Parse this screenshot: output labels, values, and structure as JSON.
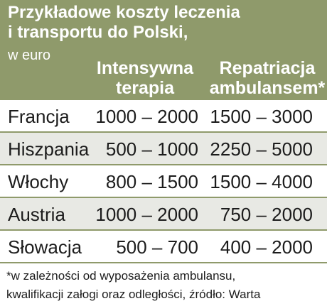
{
  "chart_data": {
    "type": "table",
    "title_lines": [
      "Przykładowe koszty leczenia",
      "i transportu do Polski,"
    ],
    "unit": "w euro",
    "columns": [
      {
        "lines": [
          "Intensywna",
          "terapia"
        ]
      },
      {
        "lines": [
          "Repatriacja",
          "ambulansem*"
        ]
      }
    ],
    "rows": [
      {
        "country": "Francja",
        "intensive": "1000 – 2000",
        "repatriation": "1500 – 3000"
      },
      {
        "country": "Hiszpania",
        "intensive": "500 – 1000",
        "repatriation": "2250 – 5000"
      },
      {
        "country": "Włochy",
        "intensive": "800 – 1500",
        "repatriation": "1500 – 4000"
      },
      {
        "country": "Austria",
        "intensive": "1000 – 2000",
        "repatriation": "750 – 2000"
      },
      {
        "country": "Słowacja",
        "intensive": "500 – 700",
        "repatriation": "400 – 2000"
      }
    ],
    "footnote_lines": [
      "*w zależności od wyposażenia ambulansu,",
      "kwalifikacji załogi oraz odległości, źródło: Warta"
    ],
    "colors": {
      "header": "#8f9a6b",
      "row_alt": "#e8e9e4",
      "text": "#1c1c1c"
    }
  }
}
